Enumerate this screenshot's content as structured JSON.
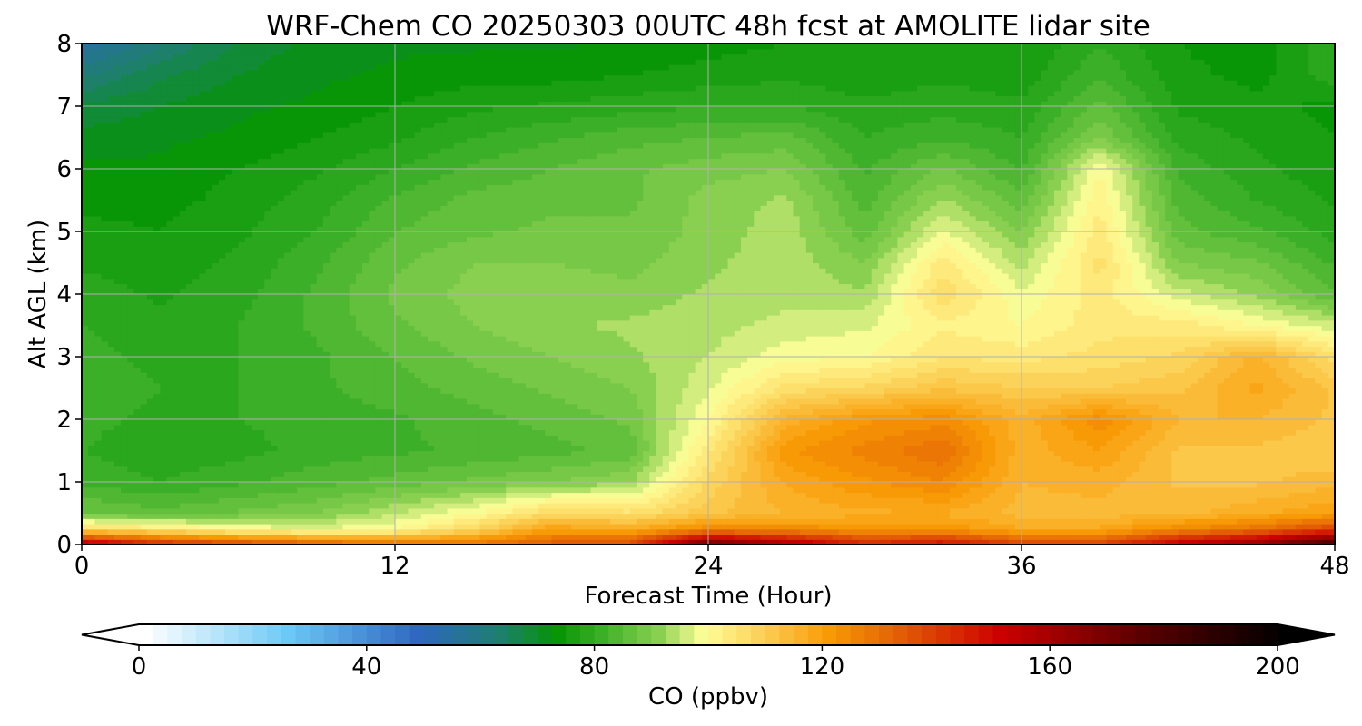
{
  "chart_data": {
    "type": "heatmap",
    "title": "WRF-Chem CO  20250303 00UTC 48h fcst at AMOLITE lidar site",
    "xlabel": "Forecast Time (Hour)",
    "ylabel": "Alt AGL (km)",
    "xlim": [
      0,
      48
    ],
    "ylim": [
      0,
      8
    ],
    "xticks": [
      0,
      12,
      24,
      36,
      48
    ],
    "yticks": [
      0,
      1,
      2,
      3,
      4,
      5,
      6,
      7,
      8
    ],
    "grid": true,
    "x": [
      0,
      3,
      6,
      9,
      12,
      15,
      18,
      21,
      24,
      27,
      30,
      33,
      36,
      39,
      42,
      45,
      48
    ],
    "y": [
      0,
      0.25,
      0.5,
      1,
      1.5,
      2,
      2.5,
      3,
      3.5,
      4,
      4.5,
      5,
      5.5,
      6,
      6.5,
      7,
      7.5,
      8
    ],
    "values": [
      [
        160,
        145,
        140,
        135,
        130,
        130,
        135,
        138,
        175,
        160,
        145,
        150,
        140,
        140,
        155,
        165,
        185
      ],
      [
        108,
        105,
        100,
        98,
        100,
        108,
        120,
        118,
        125,
        125,
        122,
        122,
        118,
        118,
        125,
        130,
        140
      ],
      [
        88,
        86,
        88,
        90,
        95,
        100,
        108,
        106,
        112,
        115,
        117,
        117,
        114,
        114,
        114,
        117,
        120
      ],
      [
        82,
        80,
        82,
        84,
        86,
        88,
        90,
        92,
        108,
        118,
        122,
        125,
        115,
        116,
        112,
        112,
        114
      ],
      [
        80,
        78,
        79,
        81,
        82,
        83,
        84,
        86,
        104,
        122,
        126,
        130,
        116,
        120,
        112,
        112,
        110
      ],
      [
        81,
        79,
        80,
        81,
        82,
        84,
        86,
        88,
        100,
        116,
        122,
        124,
        116,
        124,
        115,
        115,
        112
      ],
      [
        82,
        80,
        80,
        82,
        84,
        86,
        88,
        90,
        97,
        106,
        108,
        112,
        110,
        110,
        112,
        118,
        112
      ],
      [
        81,
        79,
        80,
        82,
        85,
        88,
        90,
        92,
        95,
        99,
        100,
        105,
        104,
        106,
        108,
        116,
        106
      ],
      [
        80,
        78,
        80,
        83,
        87,
        90,
        92,
        93,
        94,
        96,
        97,
        102,
        100,
        104,
        104,
        100,
        96
      ],
      [
        79,
        77,
        79,
        83,
        88,
        91,
        92,
        91,
        93,
        94,
        93,
        107,
        98,
        104,
        96,
        92,
        85
      ],
      [
        77,
        76,
        78,
        82,
        87,
        90,
        90,
        89,
        92,
        94,
        90,
        104,
        94,
        106,
        90,
        88,
        82
      ],
      [
        76,
        75,
        77,
        80,
        85,
        87,
        88,
        88,
        91,
        94,
        86,
        98,
        90,
        104,
        86,
        83,
        79
      ],
      [
        74,
        74,
        76,
        79,
        83,
        86,
        87,
        87,
        91,
        93,
        84,
        93,
        86,
        102,
        84,
        80,
        77
      ],
      [
        73,
        73,
        75,
        77,
        80,
        83,
        85,
        87,
        89,
        90,
        82,
        88,
        82,
        100,
        82,
        78,
        76
      ],
      [
        71,
        72,
        73,
        75,
        77,
        80,
        82,
        84,
        85,
        86,
        80,
        82,
        80,
        90,
        79,
        77,
        75
      ],
      [
        68,
        70,
        72,
        73,
        75,
        77,
        78,
        79,
        80,
        80,
        78,
        79,
        78,
        86,
        77,
        76,
        74
      ],
      [
        62,
        67,
        70,
        72,
        73,
        74,
        74,
        75,
        76,
        77,
        76,
        77,
        76,
        82,
        76,
        74,
        79
      ],
      [
        55,
        62,
        68,
        71,
        72,
        72,
        72,
        73,
        74,
        75,
        75,
        75,
        75,
        80,
        75,
        73,
        80
      ]
    ],
    "colorbar": {
      "label": "CO  (ppbv)",
      "ticks": [
        0,
        40,
        80,
        120,
        160,
        200
      ],
      "range": [
        0,
        200
      ],
      "extend": "both",
      "orientation": "horizontal"
    }
  },
  "colors": {
    "stops": [
      {
        "v": 0,
        "c": "#ffffff"
      },
      {
        "v": 25,
        "c": "#6cc8f5"
      },
      {
        "v": 48,
        "c": "#2f66c0"
      },
      {
        "v": 62,
        "c": "#1f7f70"
      },
      {
        "v": 72,
        "c": "#059405"
      },
      {
        "v": 80,
        "c": "#3caf28"
      },
      {
        "v": 90,
        "c": "#8ad050"
      },
      {
        "v": 98,
        "c": "#ffff9a"
      },
      {
        "v": 120,
        "c": "#f89a05"
      },
      {
        "v": 130,
        "c": "#e66a05"
      },
      {
        "v": 150,
        "c": "#cc0000"
      },
      {
        "v": 175,
        "c": "#5a0000"
      },
      {
        "v": 200,
        "c": "#000000"
      }
    ]
  }
}
